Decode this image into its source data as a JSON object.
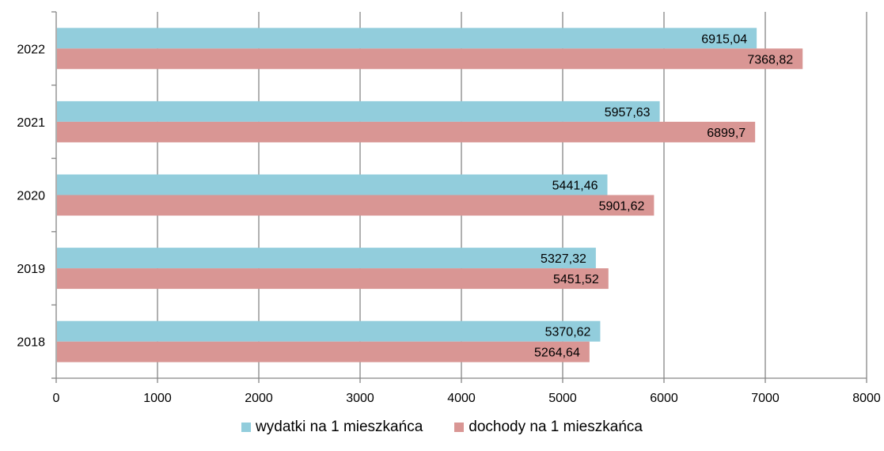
{
  "chart_data": {
    "type": "bar",
    "orientation": "horizontal",
    "categories": [
      "2018",
      "2019",
      "2020",
      "2021",
      "2022"
    ],
    "series": [
      {
        "name": "wydatki na 1 mieszkańca",
        "values": [
          5370.62,
          5327.32,
          5441.46,
          5957.63,
          6915.04
        ],
        "labels": [
          "5370,62",
          "5327,32",
          "5441,46",
          "5957,63",
          "6915,04"
        ],
        "color": "#92CDDC"
      },
      {
        "name": "dochody na 1 mieszkańca",
        "values": [
          5264.64,
          5451.52,
          5901.62,
          6899.7,
          7368.82
        ],
        "labels": [
          "5264,64",
          "5451,52",
          "5901,62",
          "6899,7",
          "7368,82"
        ],
        "color": "#D99694"
      }
    ],
    "xlim": [
      0,
      8000
    ],
    "x_ticks": [
      "0",
      "1000",
      "2000",
      "3000",
      "4000",
      "5000",
      "6000",
      "7000",
      "8000"
    ],
    "grid": "vertical",
    "legend_position": "bottom"
  }
}
